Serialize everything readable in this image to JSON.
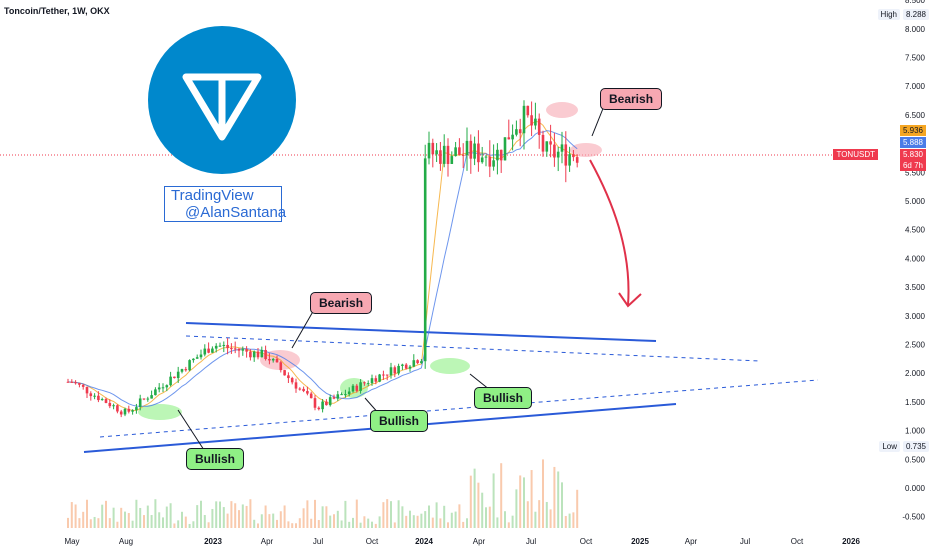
{
  "header": {
    "title": "Toncoin/Tether, 1W, OKX"
  },
  "logo": {
    "color": "#0088cc"
  },
  "watermark": {
    "line1": "TradingView",
    "line2": "@AlanSantana"
  },
  "callouts": {
    "bullish_1": "Bullish",
    "bullish_2": "Bullish",
    "bullish_3": "Bullish",
    "bearish_1": "Bearish",
    "bearish_2": "Bearish"
  },
  "price_scale": {
    "ticks": [
      "8.500",
      "8.000",
      "7.500",
      "7.000",
      "6.500",
      "6.000",
      "5.500",
      "5.000",
      "4.500",
      "4.000",
      "3.500",
      "3.000",
      "2.500",
      "2.000",
      "1.500",
      "1.000",
      "0.500",
      "0.000",
      "-0.500"
    ],
    "high_label": "High",
    "high_value": "8.288",
    "low_label": "Low",
    "low_value": "0.735",
    "ma_fast": "5.936",
    "ma_slow": "5.888",
    "symbol": "TONUSDT",
    "last_price": "5.830",
    "countdown": "6d 7h"
  },
  "colors": {
    "up": "#26a69a",
    "up_green": "#22ab47",
    "down": "#ef3a4e",
    "trendline": "#2a5ad8",
    "arrow": "#e0314a",
    "ma_orange": "#f5a623",
    "ma_blue": "#4a7ce8"
  },
  "chart_data": {
    "type": "line",
    "title": "Toncoin/Tether, 1W, OKX",
    "x_ticks": [
      "May",
      "Aug",
      "2023",
      "Apr",
      "Jul",
      "Oct",
      "2024",
      "Apr",
      "Jul",
      "Oct",
      "2025",
      "Apr",
      "Jul",
      "Oct",
      "2026"
    ],
    "ylim": [
      -0.5,
      8.5
    ],
    "grid": false,
    "series": [
      {
        "x": [
          "May",
          "Aug",
          "2023",
          "Apr",
          "Jul",
          "Oct",
          "2024",
          "Apr",
          "Jul",
          "Oct"
        ],
        "values": [
          1.85,
          1.3,
          2.5,
          2.3,
          1.4,
          1.9,
          2.3,
          6.5,
          7.2,
          5.83
        ]
      }
    ],
    "high": 8.288,
    "low": 0.735,
    "last": 5.83
  }
}
